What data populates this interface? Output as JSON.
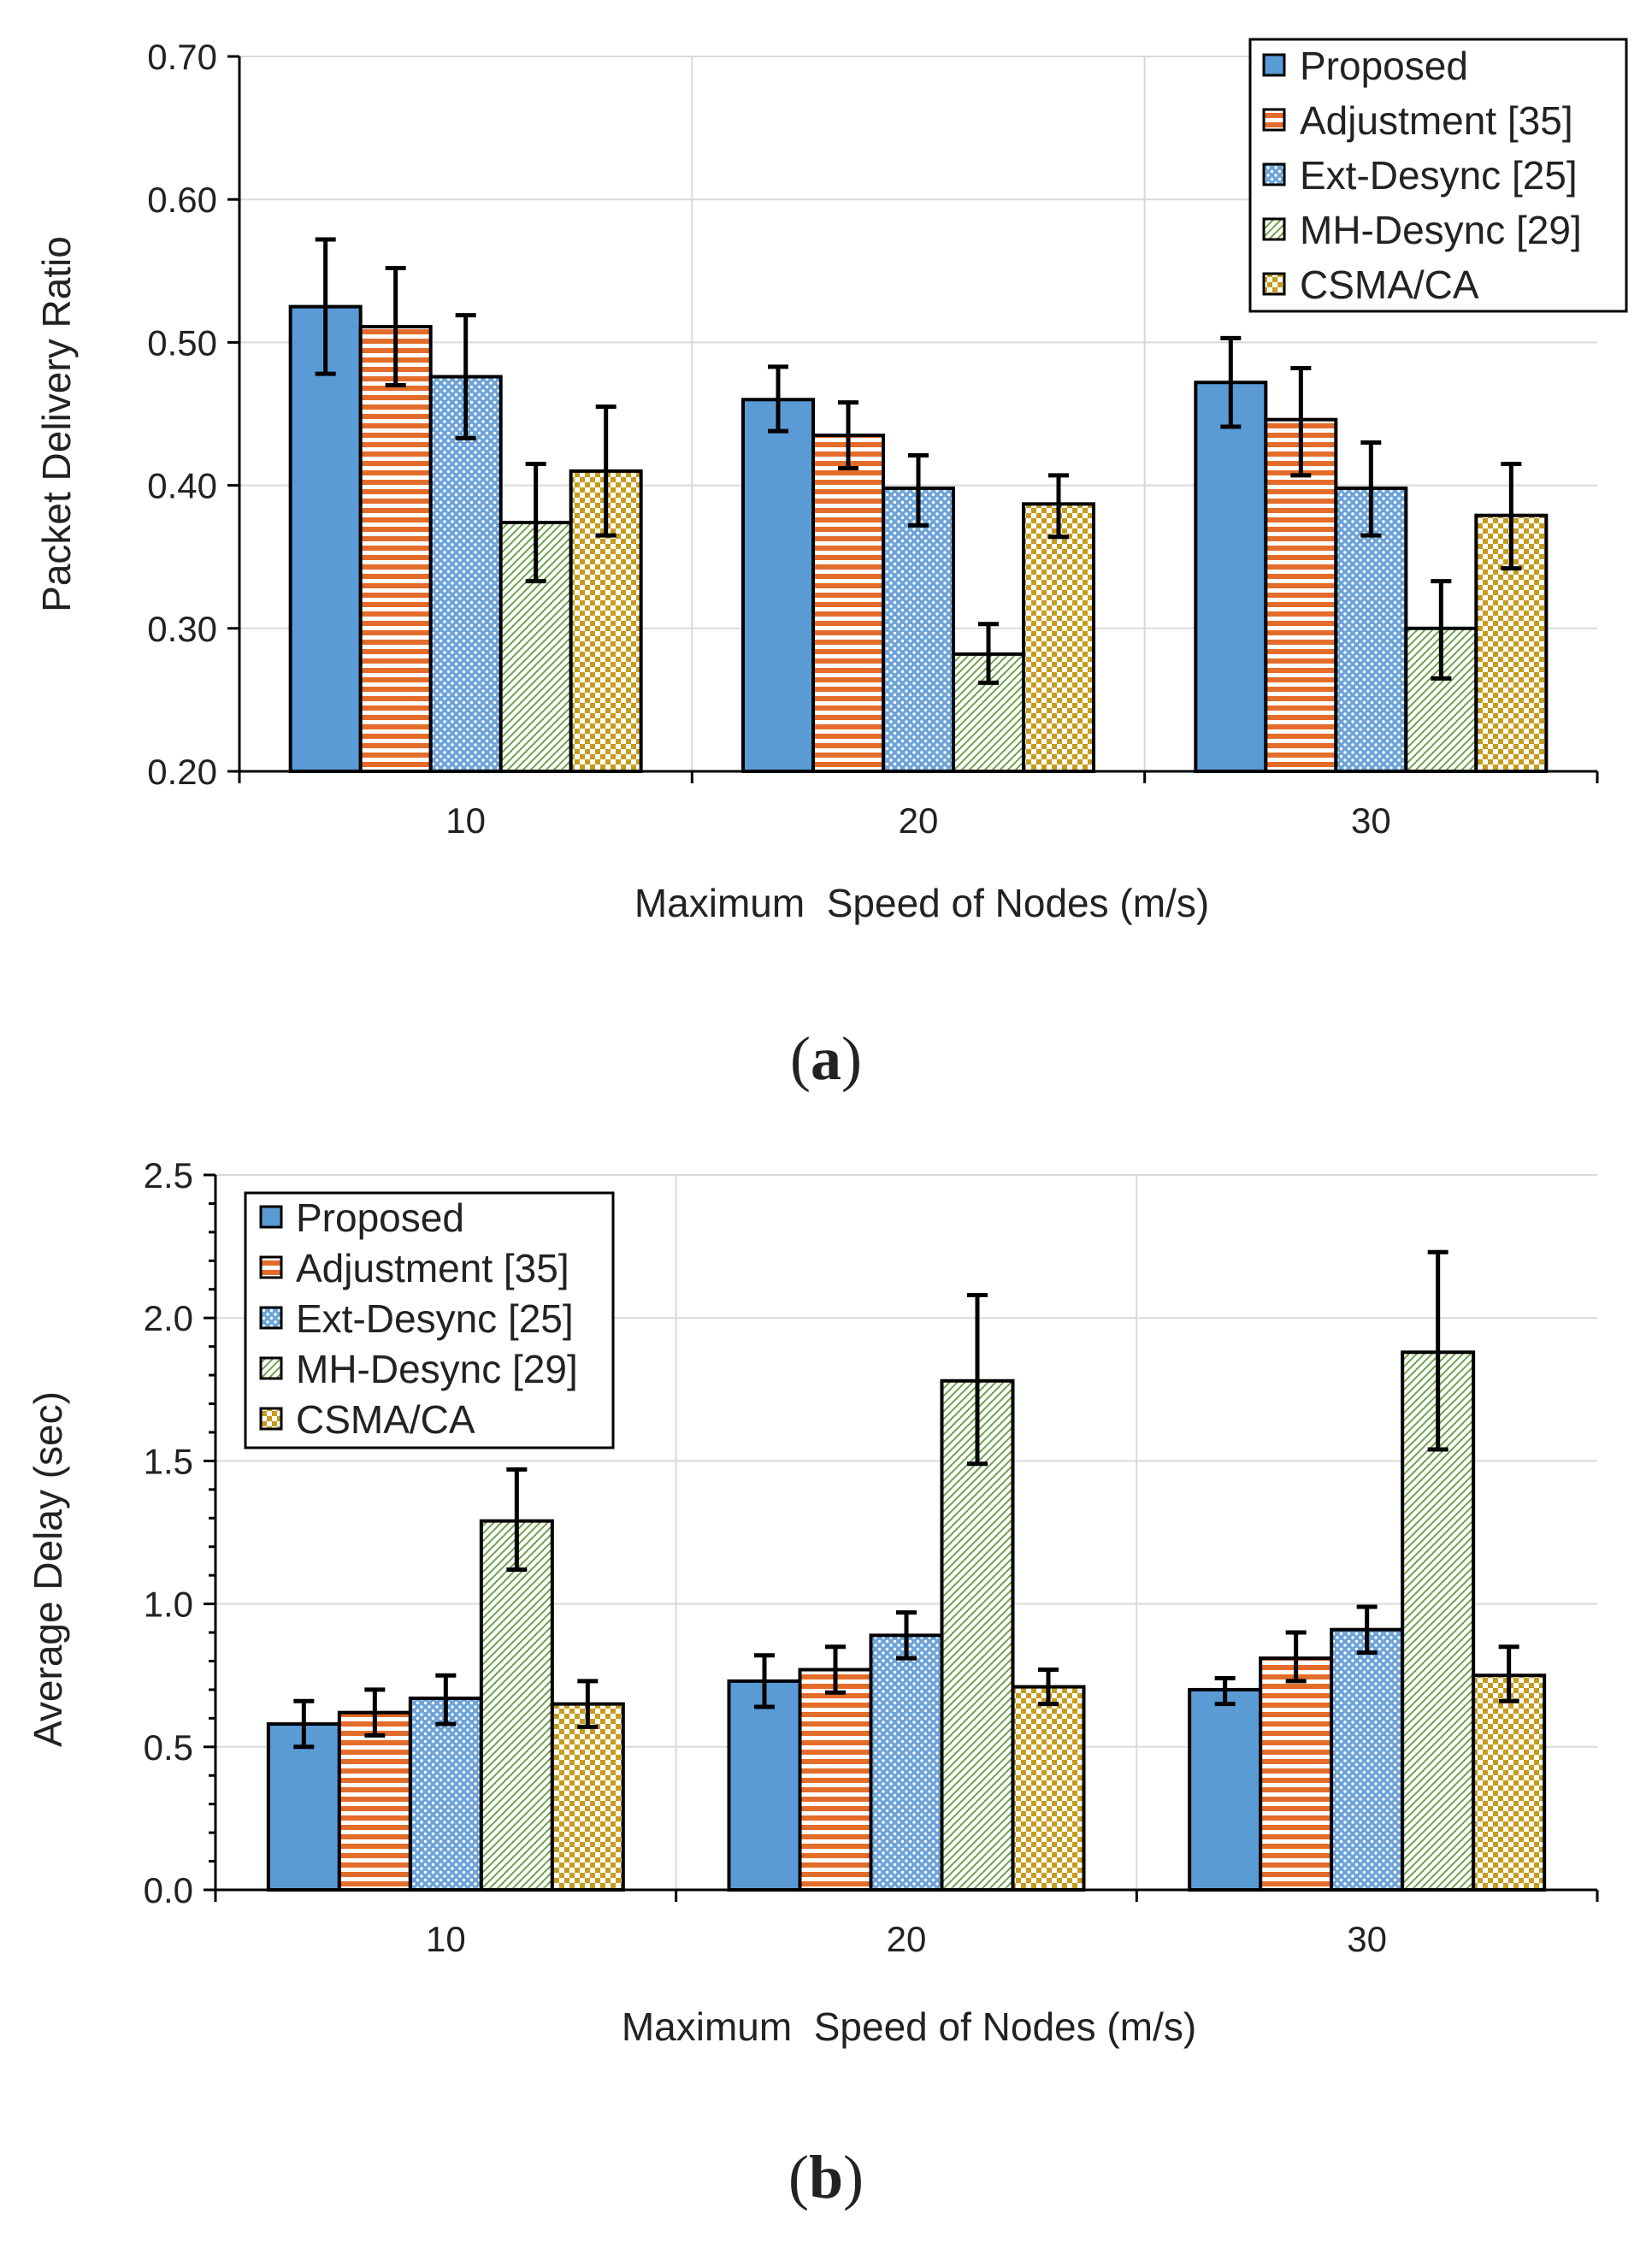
{
  "chart_data": [
    {
      "type": "bar",
      "panel": "(a)",
      "panel_letter": "a",
      "ylabel": "Packet Delivery Ratio",
      "xlabel": "Maximum  Speed of Nodes (m/s)",
      "categories": [
        "10",
        "20",
        "30"
      ],
      "ylim": [
        0.2,
        0.7
      ],
      "yticks": [
        0.2,
        0.3,
        0.4,
        0.5,
        0.6,
        0.7
      ],
      "ytick_labels": [
        "0.20",
        "0.30",
        "0.40",
        "0.50",
        "0.60",
        "0.70"
      ],
      "grid": true,
      "legend_position": "top-right",
      "series": [
        {
          "name": "Proposed",
          "pattern": "solid-blue",
          "values": [
            0.525,
            0.46,
            0.472
          ],
          "err_low": [
            0.478,
            0.438,
            0.441
          ],
          "err_high": [
            0.572,
            0.483,
            0.503
          ]
        },
        {
          "name": "Adjustment [35]",
          "pattern": "orange-stripes",
          "values": [
            0.511,
            0.435,
            0.446
          ],
          "err_low": [
            0.47,
            0.412,
            0.407
          ],
          "err_high": [
            0.552,
            0.458,
            0.482
          ]
        },
        {
          "name": "Ext-Desync [25]",
          "pattern": "blue-dots",
          "values": [
            0.476,
            0.398,
            0.398
          ],
          "err_low": [
            0.433,
            0.372,
            0.365
          ],
          "err_high": [
            0.519,
            0.421,
            0.43
          ]
        },
        {
          "name": "MH-Desync [29]",
          "pattern": "green-hatch",
          "values": [
            0.374,
            0.282,
            0.3
          ],
          "err_low": [
            0.333,
            0.262,
            0.265
          ],
          "err_high": [
            0.415,
            0.303,
            0.333
          ]
        },
        {
          "name": "CSMA/CA",
          "pattern": "gold-checks",
          "values": [
            0.41,
            0.387,
            0.379
          ],
          "err_low": [
            0.365,
            0.364,
            0.342
          ],
          "err_high": [
            0.455,
            0.407,
            0.415
          ]
        }
      ]
    },
    {
      "type": "bar",
      "panel": "(b)",
      "panel_letter": "b",
      "ylabel": "Average Delay (sec)",
      "xlabel": "Maximum  Speed of Nodes (m/s)",
      "categories": [
        "10",
        "20",
        "30"
      ],
      "ylim": [
        0.0,
        2.5
      ],
      "yticks": [
        0.0,
        0.5,
        1.0,
        1.5,
        2.0,
        2.5
      ],
      "ytick_labels": [
        "0.0",
        "0.5",
        "1.0",
        "1.5",
        "2.0",
        "2.5"
      ],
      "grid": true,
      "legend_position": "top-left",
      "series": [
        {
          "name": "Proposed",
          "pattern": "solid-blue",
          "values": [
            0.58,
            0.73,
            0.7
          ],
          "err_low": [
            0.5,
            0.64,
            0.65
          ],
          "err_high": [
            0.66,
            0.82,
            0.74
          ]
        },
        {
          "name": "Adjustment [35]",
          "pattern": "orange-stripes",
          "values": [
            0.62,
            0.77,
            0.81
          ],
          "err_low": [
            0.54,
            0.69,
            0.73
          ],
          "err_high": [
            0.7,
            0.85,
            0.9
          ]
        },
        {
          "name": "Ext-Desync [25]",
          "pattern": "blue-dots",
          "values": [
            0.67,
            0.89,
            0.91
          ],
          "err_low": [
            0.58,
            0.81,
            0.83
          ],
          "err_high": [
            0.75,
            0.97,
            0.99
          ]
        },
        {
          "name": "MH-Desync [29]",
          "pattern": "green-hatch",
          "values": [
            1.29,
            1.78,
            1.88
          ],
          "err_low": [
            1.12,
            1.49,
            1.54
          ],
          "err_high": [
            1.47,
            2.08,
            2.23
          ]
        },
        {
          "name": "CSMA/CA",
          "pattern": "gold-checks",
          "values": [
            0.65,
            0.71,
            0.75
          ],
          "err_low": [
            0.57,
            0.65,
            0.66
          ],
          "err_high": [
            0.73,
            0.77,
            0.85
          ]
        }
      ]
    }
  ]
}
